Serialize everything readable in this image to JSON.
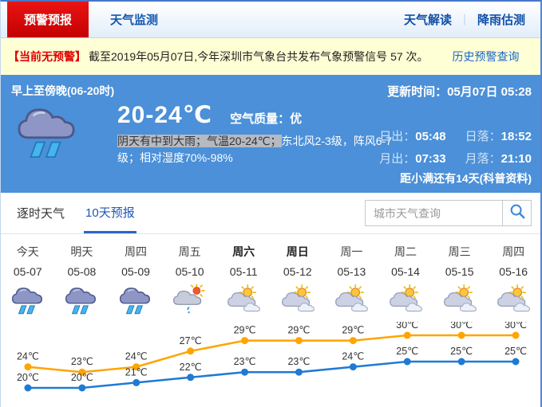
{
  "nav": {
    "active_tab": "预警预报",
    "tab_monitor": "天气监测",
    "link_interpret": "天气解读",
    "link_rainfall": "降雨估测",
    "separator": "｜"
  },
  "banner": {
    "badge": "【当前无预警】",
    "text": "截至2019年05月07日,今年深圳市气象台共发布气象预警信号 57 次。",
    "link": "历史预警查询"
  },
  "current": {
    "period": "早上至傍晚(06-20时)",
    "update_label": "更新时间：",
    "update_value": "05月07日 05:28",
    "icon": "rain",
    "temp_range": "20-24℃",
    "aqi_label": "空气质量：",
    "aqi_value": "优",
    "desc_highlight": "阴天有中到大雨；气温20-24℃；",
    "desc_rest": "东北风2-3级，阵风6-7级；相对湿度70%-98%",
    "sunrise_label": "日出：",
    "sunrise": "05:48",
    "sunset_label": "日落：",
    "sunset": "18:52",
    "moonrise_label": "月出：",
    "moonrise": "07:33",
    "moonset_label": "月落：",
    "moonset": "21:10",
    "countdown_text": "距小满还有14天",
    "countdown_link": "(科普资料)"
  },
  "tabs": {
    "hourly": "逐时天气",
    "ten_day": "10天预报"
  },
  "search": {
    "placeholder": "城市天气查询"
  },
  "forecast": {
    "days": [
      {
        "label": "今天",
        "date": "05-07",
        "icon": "rain",
        "bold": false
      },
      {
        "label": "明天",
        "date": "05-08",
        "icon": "rain",
        "bold": false
      },
      {
        "label": "周四",
        "date": "05-09",
        "icon": "rain",
        "bold": false
      },
      {
        "label": "周五",
        "date": "05-10",
        "icon": "sun-shower",
        "bold": false
      },
      {
        "label": "周六",
        "date": "05-11",
        "icon": "partly-cloudy",
        "bold": true
      },
      {
        "label": "周日",
        "date": "05-12",
        "icon": "partly-cloudy",
        "bold": true
      },
      {
        "label": "周一",
        "date": "05-13",
        "icon": "partly-cloudy",
        "bold": false
      },
      {
        "label": "周二",
        "date": "05-14",
        "icon": "partly-cloudy",
        "bold": false
      },
      {
        "label": "周三",
        "date": "05-15",
        "icon": "partly-cloudy",
        "bold": false
      },
      {
        "label": "周四",
        "date": "05-16",
        "icon": "partly-cloudy",
        "bold": false
      }
    ]
  },
  "chart_data": {
    "type": "line",
    "categories": [
      "05-07",
      "05-08",
      "05-09",
      "05-10",
      "05-11",
      "05-12",
      "05-13",
      "05-14",
      "05-15",
      "05-16"
    ],
    "series": [
      {
        "name": "high",
        "values": [
          24,
          23,
          24,
          27,
          29,
          29,
          29,
          30,
          30,
          30
        ],
        "color": "#ffa400"
      },
      {
        "name": "low",
        "values": [
          20,
          20,
          21,
          22,
          23,
          23,
          24,
          25,
          25,
          25
        ],
        "color": "#1f7ad4"
      }
    ],
    "unit": "℃",
    "ylim": [
      18,
      32
    ],
    "grid": false,
    "legend": "none",
    "point_labels": true
  },
  "colors": {
    "brand_red": "#d40000",
    "hero_blue": "#4b90d8",
    "link_blue": "#1557b0",
    "banner_bg": "#ffffd5",
    "high_line": "#ffa400",
    "low_line": "#1f7ad4",
    "highlight_bg": "#b5bac2"
  }
}
